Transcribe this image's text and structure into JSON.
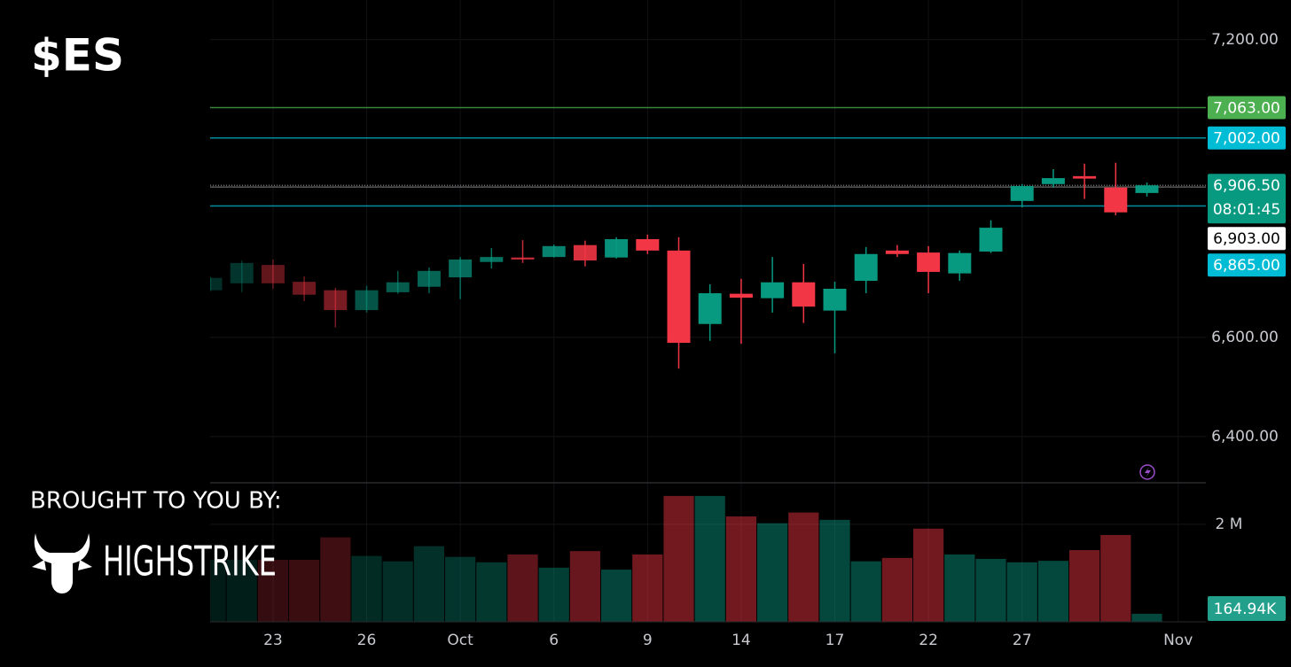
{
  "title": "$ES",
  "sponsor": {
    "caption": "BROUGHT TO YOU BY:",
    "name": "HIGHSTRIKE"
  },
  "chart_data": {
    "type": "candlestick",
    "categories": [
      null,
      null,
      "23",
      null,
      null,
      "26",
      null,
      null,
      "Oct",
      null,
      null,
      "6",
      null,
      null,
      "9",
      null,
      null,
      "14",
      null,
      null,
      "17",
      null,
      null,
      "22",
      null,
      null,
      "27",
      null,
      null,
      null,
      null,
      "Nov"
    ],
    "open": [
      6695,
      6709,
      6746,
      6712,
      6695,
      6655,
      6691,
      6702,
      6721,
      6752,
      6761,
      6762,
      6786,
      6761,
      6798,
      6775,
      6627,
      6688,
      6679,
      6711,
      6654,
      6714,
      6775,
      6771,
      6729,
      6773,
      6875,
      6909,
      6925,
      6902,
      6891,
      null
    ],
    "high": [
      6722,
      6755,
      6757,
      6723,
      6700,
      6704,
      6734,
      6741,
      6762,
      6780,
      6796,
      6787,
      6795,
      6802,
      6807,
      6802,
      6707,
      6718,
      6762,
      6748,
      6712,
      6782,
      6786,
      6784,
      6775,
      6836,
      6909,
      6939,
      6950,
      6952,
      6912,
      null
    ],
    "low": [
      6693,
      6691,
      6698,
      6673,
      6620,
      6650,
      6688,
      6689,
      6677,
      6739,
      6750,
      6761,
      6743,
      6759,
      6768,
      6537,
      6593,
      6587,
      6650,
      6629,
      6568,
      6689,
      6762,
      6689,
      6714,
      6770,
      6862,
      6902,
      6879,
      6846,
      6884,
      null
    ],
    "close": [
      6720,
      6750,
      6709,
      6686,
      6655,
      6695,
      6711,
      6734,
      6757,
      6762,
      6757,
      6784,
      6755,
      6798,
      6775,
      6589,
      6689,
      6680,
      6711,
      6662,
      6698,
      6768,
      6768,
      6732,
      6770,
      6821,
      6905,
      6921,
      6920,
      6852,
      6906.5,
      null
    ],
    "up_color": "#089981",
    "down_color": "#f23645",
    "ylim": [
      6307,
      7280
    ],
    "yticks": [
      {
        "value": 7200,
        "label": "7,200.00"
      },
      {
        "value": 6600,
        "label": "6,600.00"
      },
      {
        "value": 6400,
        "label": "6,400.00"
      }
    ],
    "price_lines": [
      {
        "value": 7063,
        "label": "7,063.00",
        "color": "#4caf50"
      },
      {
        "value": 7002,
        "label": "7,002.00",
        "color": "#00bcd4"
      },
      {
        "value": 6906.5,
        "label": "6,906.50",
        "color": "#089981",
        "countdown": "08:01:45"
      },
      {
        "value": 6903,
        "label": "6,903.00",
        "color": "#ffffff"
      },
      {
        "value": 6865,
        "label": "6,865.00",
        "color": "#00bcd4"
      }
    ],
    "volume": {
      "values": [
        1270000,
        1270000,
        1270000,
        1270000,
        1730000,
        1350000,
        1240000,
        1550000,
        1330000,
        1220000,
        1380000,
        1110000,
        1450000,
        1070000,
        1380000,
        2580000,
        2580000,
        2160000,
        2020000,
        2240000,
        2090000,
        1240000,
        1310000,
        1910000,
        1380000,
        1290000,
        1220000,
        1250000,
        1470000,
        1780000,
        164940,
        null
      ],
      "value_labels": [
        null,
        null,
        null,
        null,
        null,
        null,
        null,
        null,
        null,
        null,
        null,
        null,
        null,
        null,
        null,
        null,
        null,
        null,
        null,
        null,
        null,
        null,
        null,
        null,
        null,
        null,
        null,
        null,
        null,
        null,
        "164.94K",
        null
      ],
      "ylim": [
        0,
        2850000
      ],
      "yticks": [
        {
          "value": 2000000,
          "label": "2 M"
        }
      ]
    }
  }
}
